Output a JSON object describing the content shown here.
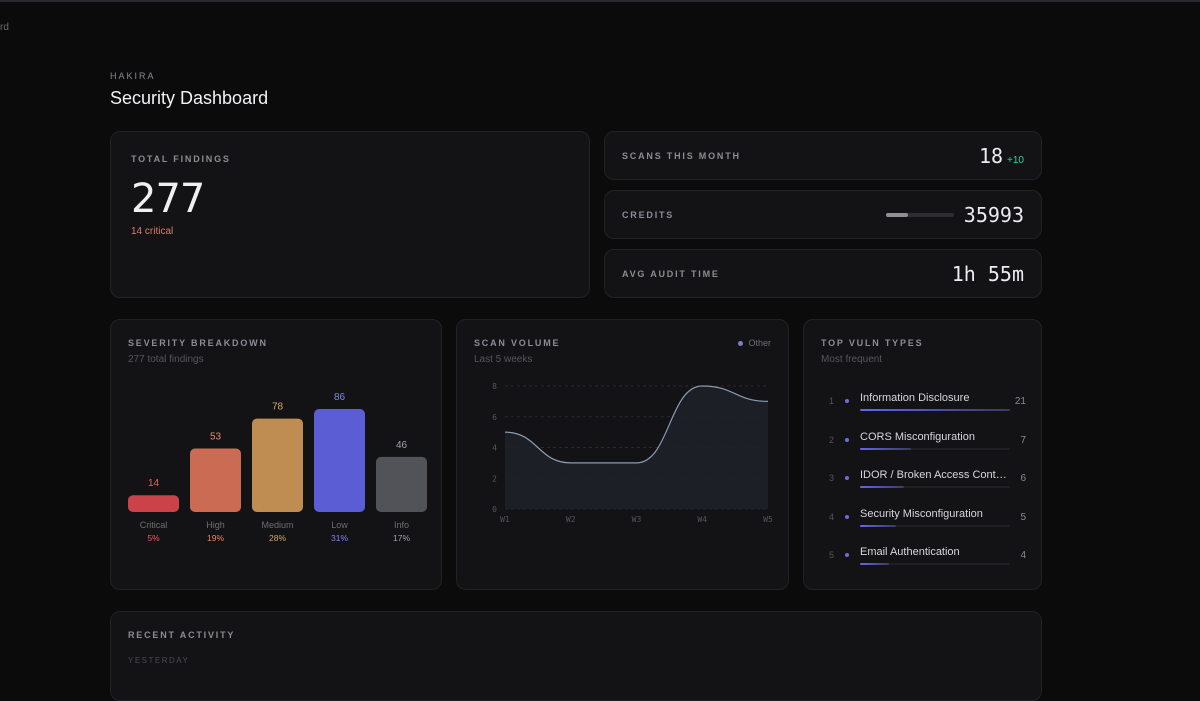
{
  "edge_tab": "rd",
  "header": {
    "brand": "HAKIRA",
    "title": "Security Dashboard"
  },
  "total_findings": {
    "label": "TOTAL FINDINGS",
    "value": "277",
    "critical": "14 critical"
  },
  "stats": {
    "scans": {
      "label": "SCANS THIS MONTH",
      "value": "18",
      "delta": "+10"
    },
    "credits": {
      "label": "CREDITS",
      "value": "35993",
      "bar_fraction": 0.32
    },
    "audit": {
      "label": "AVG AUDIT TIME",
      "value": "1h 55m"
    }
  },
  "severity": {
    "title": "SEVERITY BREAKDOWN",
    "subtitle": "277 total findings",
    "chart_data": {
      "type": "bar",
      "categories": [
        "Critical",
        "High",
        "Medium",
        "Low",
        "Info"
      ],
      "values": [
        14,
        53,
        78,
        86,
        46
      ],
      "percents": [
        "5%",
        "19%",
        "28%",
        "31%",
        "17%"
      ],
      "colors": [
        "#e0484f",
        "#e0765a",
        "#d39a58",
        "#6366e8",
        "#5a5a60"
      ],
      "label_colors": [
        "#e8605f",
        "#e88a6c",
        "#d9a56a",
        "#8085f0",
        "#a0a0a8"
      ]
    }
  },
  "volume": {
    "title": "SCAN VOLUME",
    "subtitle": "Last 5 weeks",
    "legend": "Other",
    "chart_data": {
      "type": "area",
      "x": [
        "W1",
        "W2",
        "W3",
        "W4",
        "W5"
      ],
      "series": [
        {
          "name": "Other",
          "values": [
            5,
            3,
            3,
            8,
            7
          ]
        }
      ],
      "yticks": [
        "0",
        "2",
        "4",
        "6",
        "8"
      ],
      "ylim": [
        0,
        8
      ]
    }
  },
  "vuln": {
    "title": "TOP VULN TYPES",
    "subtitle": "Most frequent",
    "items": [
      {
        "rank": "1",
        "name": "Information Disclosure",
        "count": "21",
        "fraction": 1.0
      },
      {
        "rank": "2",
        "name": "CORS Misconfiguration",
        "count": "7",
        "fraction": 0.34
      },
      {
        "rank": "3",
        "name": "IDOR / Broken Access Cont…",
        "count": "6",
        "fraction": 0.29
      },
      {
        "rank": "4",
        "name": "Security Misconfiguration",
        "count": "5",
        "fraction": 0.24
      },
      {
        "rank": "5",
        "name": "Email Authentication",
        "count": "4",
        "fraction": 0.19
      }
    ]
  },
  "recent": {
    "title": "RECENT ACTIVITY",
    "day": "YESTERDAY"
  }
}
